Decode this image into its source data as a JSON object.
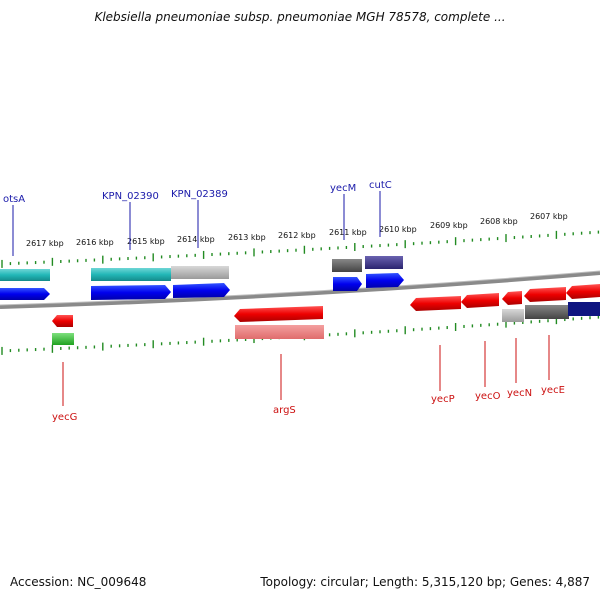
{
  "title": "Klebsiella pneumoniae subsp. pneumoniae MGH 78578, complete ...",
  "footer": {
    "accession": "Accession: NC_009648",
    "summary": "Topology: circular; Length: 5,315,120 bp; Genes: 4,887"
  },
  "scale_labels": [
    "2617 kbp",
    "2616 kbp",
    "2615 kbp",
    "2614 kbp",
    "2613 kbp",
    "2612 kbp",
    "2611 kbp",
    "2610 kbp",
    "2609 kbp",
    "2608 kbp",
    "2607 kbp"
  ],
  "genes_top": [
    "otsA",
    "KPN_02390",
    "KPN_02389",
    "yecM",
    "cutC"
  ],
  "genes_bottom": [
    "yecG",
    "argS",
    "yecP",
    "yecO",
    "yecN",
    "yecE"
  ],
  "colors": {
    "forward_gene": "#0000ee",
    "reverse_gene": "#ee0000",
    "backbone": "#8a8a8a",
    "ticks": "#228b22"
  }
}
